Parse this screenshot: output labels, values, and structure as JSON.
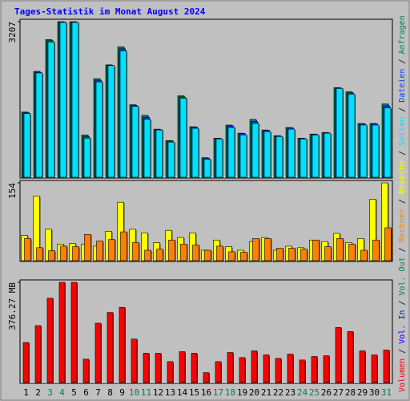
{
  "chart_data": [
    {
      "type": "bar",
      "title": "Tages-Statistik im Monat August 2024",
      "categories": [
        "1",
        "2",
        "3",
        "4",
        "5",
        "6",
        "7",
        "8",
        "9",
        "10",
        "11",
        "12",
        "13",
        "14",
        "15",
        "16",
        "17",
        "18",
        "19",
        "20",
        "21",
        "22",
        "23",
        "24",
        "25",
        "26",
        "27",
        "28",
        "29",
        "30",
        "31"
      ],
      "category_colors": [
        "#000000",
        "#000000",
        "#00805c",
        "#00805c",
        "#000000",
        "#000000",
        "#000000",
        "#000000",
        "#000000",
        "#00805c",
        "#00805c",
        "#000000",
        "#000000",
        "#000000",
        "#000000",
        "#000000",
        "#00805c",
        "#00805c",
        "#000000",
        "#000000",
        "#000000",
        "#000000",
        "#000000",
        "#00805c",
        "#00805c",
        "#000000",
        "#000000",
        "#000000",
        "#000000",
        "#000000",
        "#00805c"
      ],
      "ylim": [
        0,
        3207
      ],
      "yticks": [
        3207
      ],
      "series": [
        {
          "name": "Anfragen",
          "color": "#00805c",
          "values": [
            1353,
            2188,
            2840,
            3207,
            3207,
            885,
            2038,
            2322,
            2690,
            1503,
            1286,
            1002,
            768,
            1687,
            1052,
            418,
            818,
            1086,
            919,
            1203,
            985,
            869,
            1036,
            818,
            902,
            935,
            1854,
            1771,
            1119,
            1119,
            1520
          ]
        },
        {
          "name": "Dateien",
          "color": "#0040ff",
          "values": [
            1340,
            2170,
            2815,
            3200,
            3198,
            850,
            2005,
            2310,
            2650,
            1488,
            1245,
            995,
            760,
            1662,
            1045,
            410,
            812,
            1070,
            910,
            1160,
            978,
            862,
            1028,
            812,
            896,
            928,
            1845,
            1745,
            1110,
            1110,
            1480
          ]
        },
        {
          "name": "Seiten",
          "color": "#00e0ff",
          "values": [
            1320,
            2155,
            2790,
            3190,
            3190,
            818,
            1971,
            2305,
            2606,
            1470,
            1203,
            985,
            735,
            1637,
            1019,
            385,
            802,
            1036,
            885,
            1119,
            952,
            852,
            1002,
            802,
            885,
            919,
            1837,
            1720,
            1086,
            1086,
            1437
          ]
        }
      ]
    },
    {
      "type": "bar",
      "ylim": [
        0,
        154
      ],
      "yticks": [
        154
      ],
      "series": [
        {
          "name": "Besuche",
          "color": "#ffff00",
          "values": [
            51,
            128,
            63,
            34,
            35,
            34,
            30,
            59,
            116,
            63,
            56,
            37,
            61,
            47,
            56,
            22,
            42,
            29,
            22,
            39,
            47,
            22,
            30,
            27,
            42,
            39,
            55,
            37,
            45,
            122,
            154
          ]
        },
        {
          "name": "Rechner",
          "color": "#ff8000",
          "values": [
            45,
            27,
            21,
            30,
            29,
            53,
            40,
            43,
            58,
            37,
            22,
            24,
            42,
            34,
            32,
            22,
            30,
            19,
            18,
            45,
            45,
            26,
            26,
            24,
            42,
            29,
            45,
            34,
            22,
            42,
            66
          ]
        }
      ]
    },
    {
      "type": "bar",
      "ylim": [
        0,
        376.27
      ],
      "yticks": [
        {
          "value": 376.27,
          "label": "376.27 MB"
        }
      ],
      "series": [
        {
          "name": "Volumen",
          "color": "#ff0000",
          "values": [
            152,
            215,
            317,
            376,
            376,
            90,
            224,
            264,
            283,
            165,
            112,
            112,
            81,
            118,
            112,
            40,
            81,
            115,
            96,
            121,
            106,
            93,
            109,
            87,
            100,
            103,
            208,
            193,
            121,
            106,
            124
          ]
        }
      ],
      "legend_extra": [
        {
          "name": "Vol. In",
          "color": "#0000ff"
        },
        {
          "name": "Vol. Out",
          "color": "#00805c"
        }
      ],
      "legend_separator": " / "
    }
  ]
}
